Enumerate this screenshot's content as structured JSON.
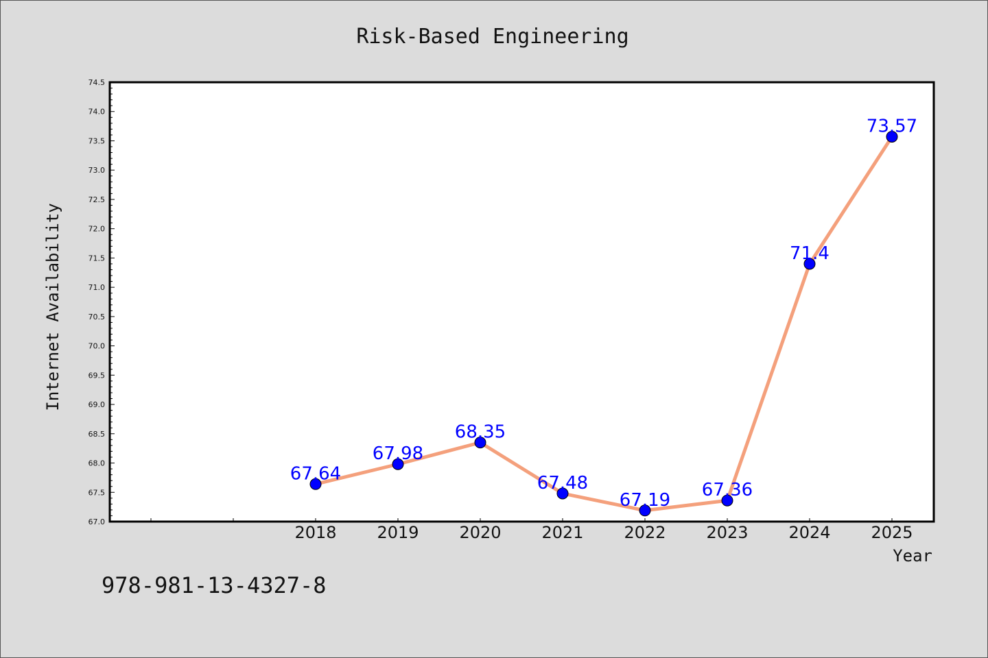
{
  "chart_data": {
    "type": "line",
    "title": "Risk-Based Engineering",
    "xlabel": "Year",
    "ylabel": "Internet Availability",
    "x": [
      "2018",
      "2019",
      "2020",
      "2021",
      "2022",
      "2023",
      "2024",
      "2025"
    ],
    "values": [
      67.64,
      67.98,
      68.35,
      67.48,
      67.19,
      67.36,
      71.4,
      73.57
    ],
    "data_labels": [
      "67.64",
      "67.98",
      "68.35",
      "67.48",
      "67.19",
      "67.36",
      "71.4",
      "73.57"
    ],
    "ylim": [
      67.0,
      74.5
    ],
    "y_ticks": [
      "67.0",
      "67.5",
      "68.0",
      "68.5",
      "69.0",
      "69.5",
      "70.0",
      "70.5",
      "71.0",
      "71.5",
      "72.0",
      "72.5",
      "73.0",
      "73.5",
      "74.0",
      "74.5"
    ],
    "grid": false,
    "legend": "none",
    "colors": {
      "line": "#f4a07c",
      "marker": "#0000ff",
      "data_label": "#0000ff",
      "background": "#dcdcdc",
      "plot_background": "#ffffff"
    }
  },
  "footer": {
    "isbn": "978-981-13-4327-8"
  }
}
